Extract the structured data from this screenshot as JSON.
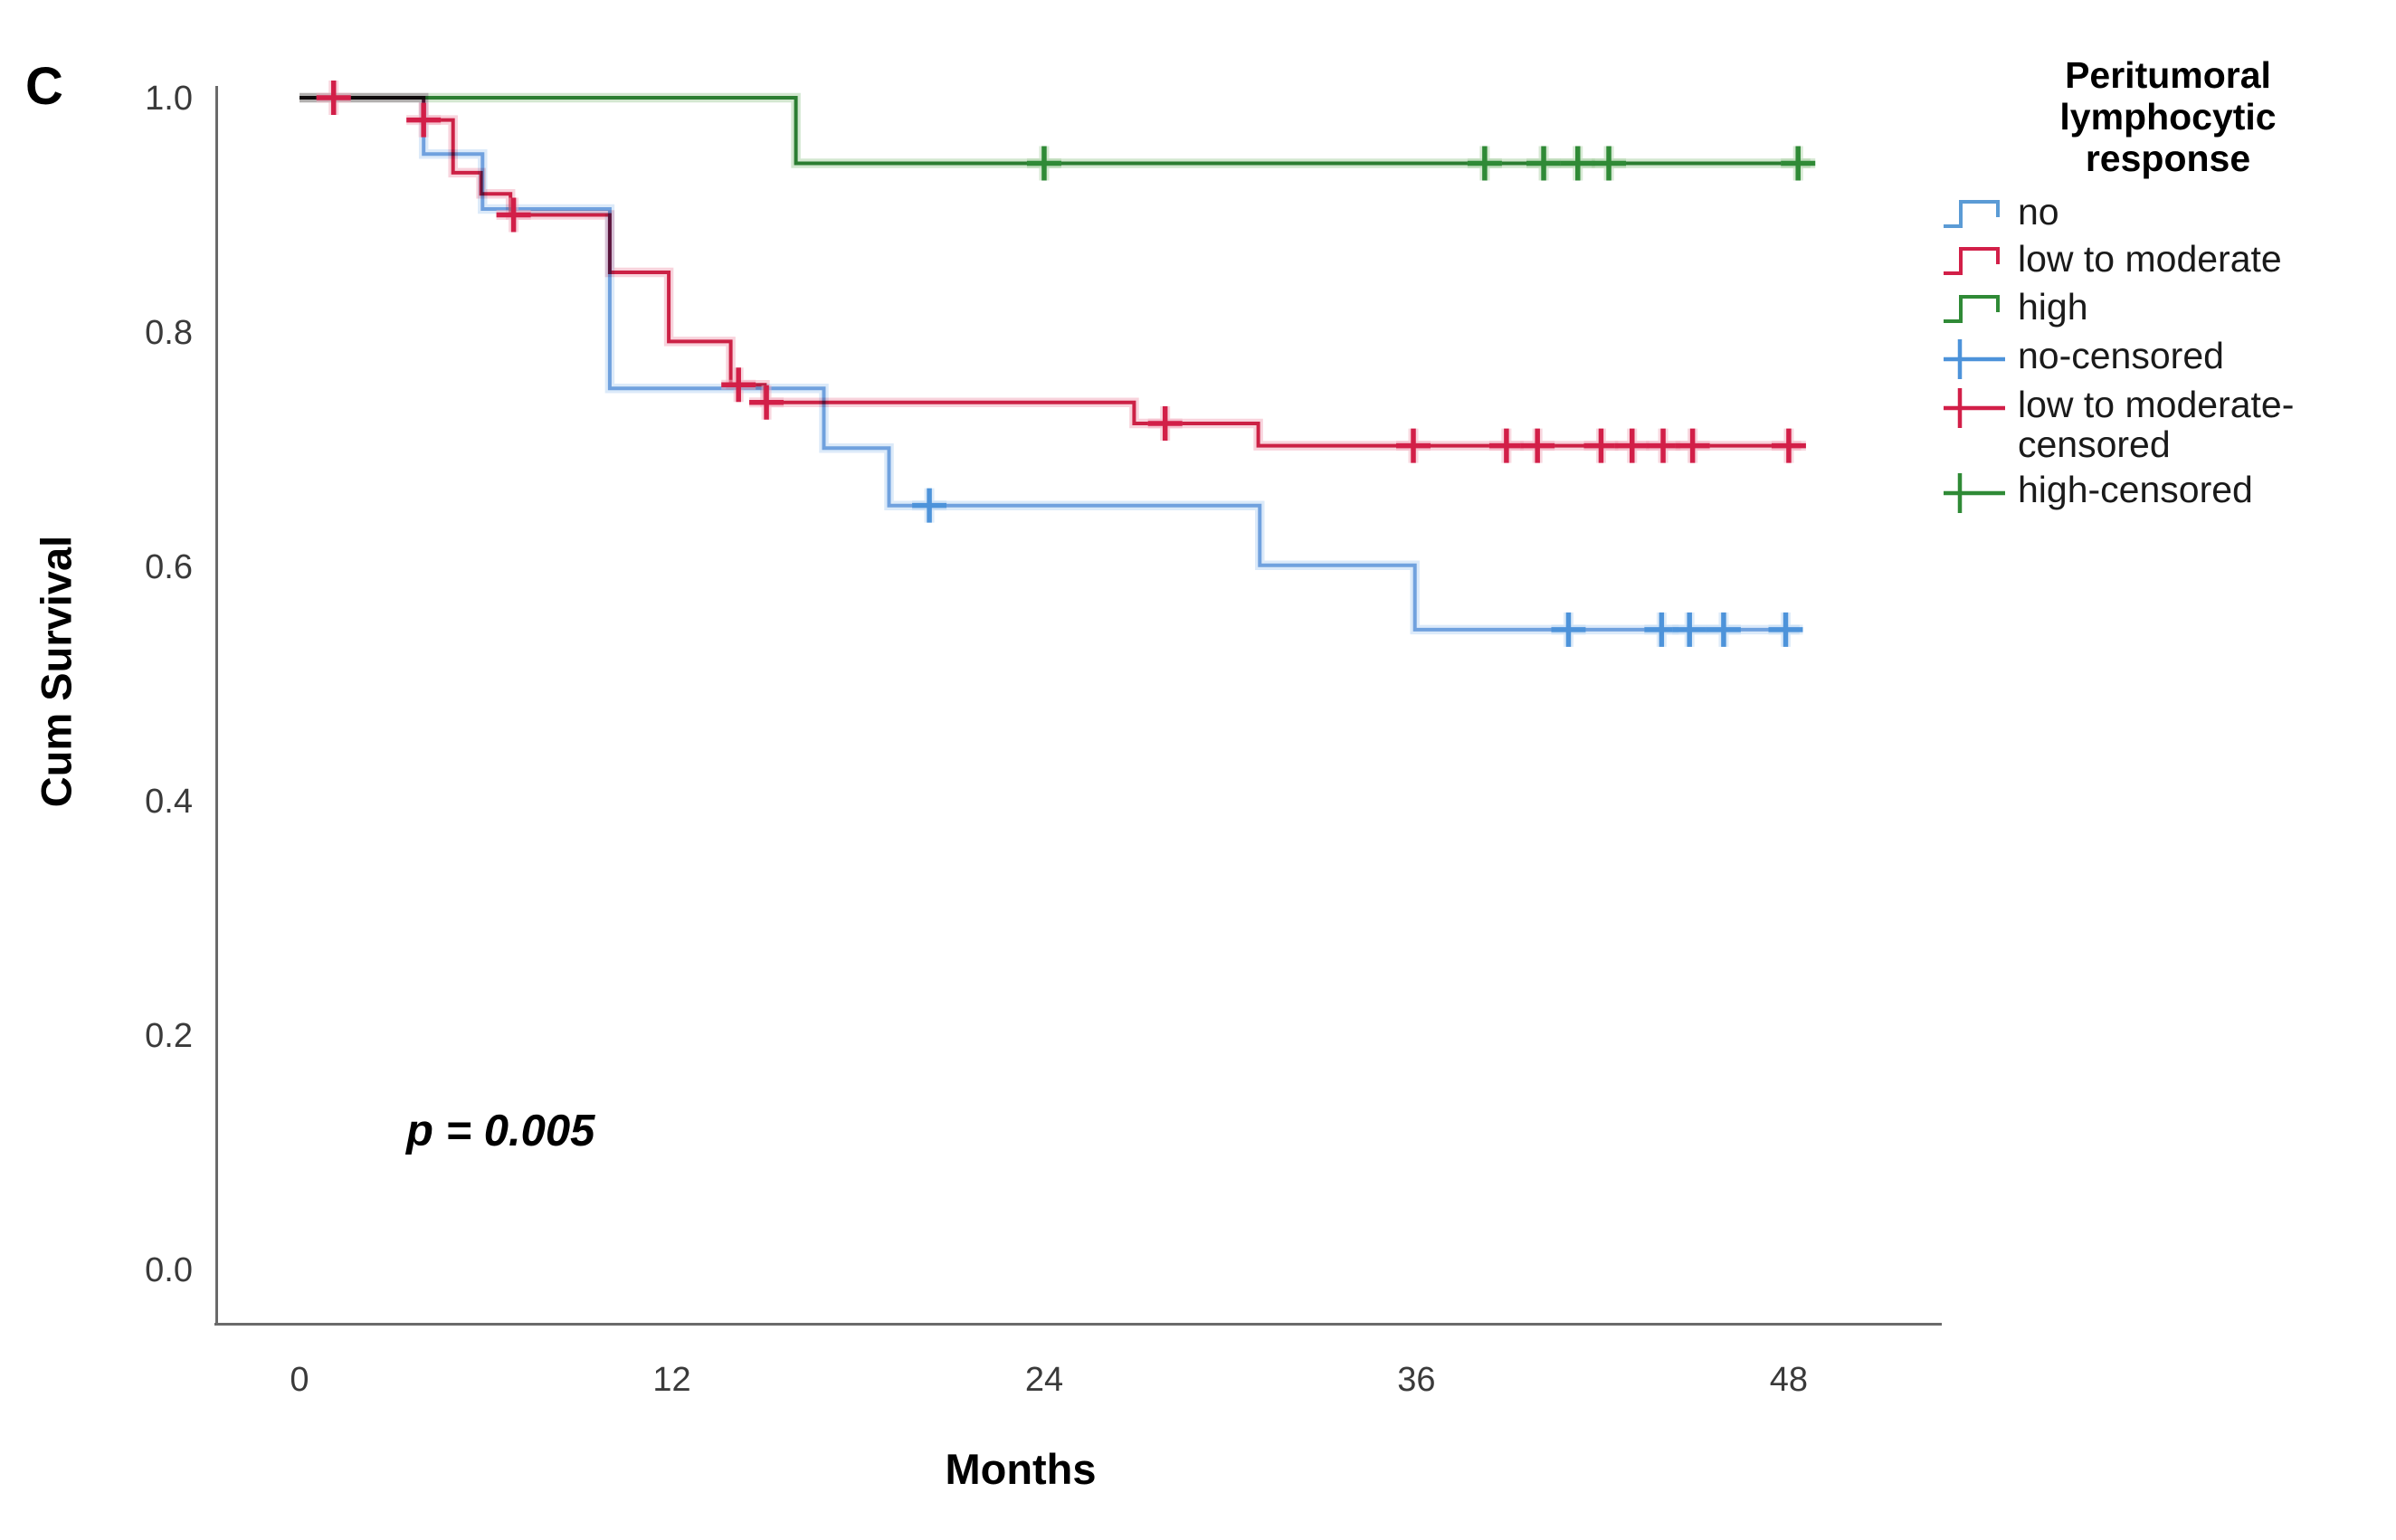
{
  "figure_label": "C",
  "annotation": {
    "p_value": "p = 0.005"
  },
  "axes": {
    "x_title": "Months",
    "y_title": "Cum Survival"
  },
  "legend": {
    "title_lines": "Peritumoral lymphocytic response",
    "items": [
      {
        "label": "no",
        "symbol": "step-line",
        "series": "no"
      },
      {
        "label": "low to moderate",
        "symbol": "step-line",
        "series": "low to moderate"
      },
      {
        "label": "high",
        "symbol": "step-line",
        "series": "high"
      },
      {
        "label": "no-censored",
        "symbol": "plus-censor",
        "series": "no"
      },
      {
        "label": "low to moderate-censored",
        "symbol": "plus-censor",
        "series": "low to moderate"
      },
      {
        "label": "high-censored",
        "symbol": "plus-censor",
        "series": "high"
      }
    ]
  },
  "chart_data": {
    "type": "line",
    "subtype": "kaplan-meier-step",
    "title": "C",
    "xlabel": "Months",
    "ylabel": "Cum Survival",
    "xlim": [
      0,
      48.7
    ],
    "ylim": [
      0.0,
      1.0
    ],
    "grid": false,
    "legend_position": "right",
    "p_value_annotation": "p = 0.005",
    "x_ticks": [
      {
        "v": 0,
        "label": "0"
      },
      {
        "v": 12,
        "label": "12"
      },
      {
        "v": 24,
        "label": "24"
      },
      {
        "v": 36,
        "label": "36"
      },
      {
        "v": 48,
        "label": "48"
      }
    ],
    "y_ticks": [
      {
        "v": 1.0,
        "label": "1.0"
      },
      {
        "v": 0.8,
        "label": "0.8"
      },
      {
        "v": 0.6,
        "label": "0.6"
      },
      {
        "v": 0.4,
        "label": "0.4"
      },
      {
        "v": 0.2,
        "label": "0.2"
      },
      {
        "v": 0.0,
        "label": "0.0"
      }
    ],
    "series": [
      {
        "name": "no",
        "color": "#82B0E4",
        "halo_color": "#BFD9F4",
        "censor_color": "#4D93DA",
        "legend_color": "#5B9BD5",
        "points": [
          [
            0,
            1.0
          ],
          [
            4,
            1.0
          ],
          [
            4,
            0.952
          ],
          [
            5.9,
            0.952
          ],
          [
            5.9,
            0.905
          ],
          [
            10,
            0.905
          ],
          [
            10,
            0.752
          ],
          [
            16.9,
            0.752
          ],
          [
            16.9,
            0.701
          ],
          [
            19,
            0.701
          ],
          [
            19,
            0.652
          ],
          [
            30.95,
            0.652
          ],
          [
            30.95,
            0.601
          ],
          [
            35.95,
            0.601
          ],
          [
            35.95,
            0.546
          ],
          [
            48.35,
            0.546
          ]
        ],
        "censored": [
          [
            20.3,
            0.652
          ],
          [
            40.9,
            0.546
          ],
          [
            43.9,
            0.546
          ],
          [
            44.8,
            0.546
          ],
          [
            45.9,
            0.546
          ],
          [
            47.9,
            0.546
          ]
        ]
      },
      {
        "name": "low to moderate",
        "color": "#D22850",
        "halo_color": "#F2AFC0",
        "censor_color": "#D21F48",
        "legend_color": "#D21F48",
        "points": [
          [
            0,
            1.0
          ],
          [
            4,
            1.0
          ],
          [
            4,
            0.981
          ],
          [
            4.95,
            0.981
          ],
          [
            4.95,
            0.936
          ],
          [
            5.85,
            0.936
          ],
          [
            5.85,
            0.918
          ],
          [
            6.8,
            0.918
          ],
          [
            6.8,
            0.9
          ],
          [
            10,
            0.9
          ],
          [
            10,
            0.851
          ],
          [
            11.9,
            0.851
          ],
          [
            11.9,
            0.792
          ],
          [
            13.9,
            0.792
          ],
          [
            13.9,
            0.755
          ],
          [
            15,
            0.755
          ],
          [
            15,
            0.74
          ],
          [
            26.9,
            0.74
          ],
          [
            26.9,
            0.722
          ],
          [
            30.9,
            0.722
          ],
          [
            30.9,
            0.703
          ],
          [
            48.4,
            0.703
          ]
        ],
        "censored": [
          [
            1.1,
            1.0
          ],
          [
            4.0,
            0.981
          ],
          [
            6.9,
            0.9
          ],
          [
            14.15,
            0.755
          ],
          [
            15.05,
            0.74
          ],
          [
            27.9,
            0.722
          ],
          [
            35.9,
            0.703
          ],
          [
            38.9,
            0.703
          ],
          [
            39.9,
            0.703
          ],
          [
            41.95,
            0.703
          ],
          [
            42.95,
            0.703
          ],
          [
            43.95,
            0.703
          ],
          [
            44.9,
            0.703
          ],
          [
            48.0,
            0.703
          ]
        ]
      },
      {
        "name": "high",
        "color": "#338A3C",
        "halo_color": "#AFD4AA",
        "censor_color": "#2F8A36",
        "legend_color": "#2F8A36",
        "points": [
          [
            0,
            1.0
          ],
          [
            16,
            1.0
          ],
          [
            16,
            0.944
          ],
          [
            48.7,
            0.944
          ]
        ],
        "censored": [
          [
            24,
            0.944
          ],
          [
            38.2,
            0.944
          ],
          [
            40.1,
            0.944
          ],
          [
            41.2,
            0.944
          ],
          [
            42.2,
            0.944
          ],
          [
            48.3,
            0.944
          ]
        ]
      }
    ]
  }
}
